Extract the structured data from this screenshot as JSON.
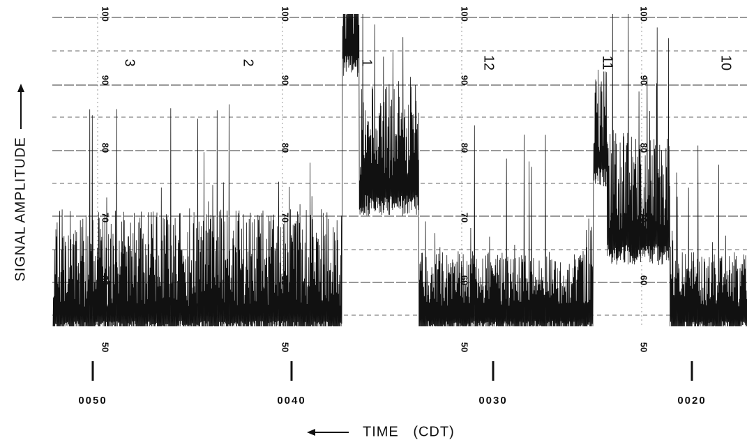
{
  "axis_labels": {
    "y": "SIGNAL AMPLITUDE",
    "x": "TIME (CDT)"
  },
  "time_labels": [
    "0050",
    "0040",
    "0030",
    "0020"
  ],
  "scale_columns": [
    {
      "labels": [
        "100",
        "90",
        "80",
        "70",
        "60",
        "50"
      ]
    },
    {
      "labels": [
        "100",
        "90",
        "80",
        "70",
        "60",
        "50"
      ]
    },
    {
      "labels": [
        "100",
        "90",
        "80",
        "70",
        "60",
        "50"
      ]
    },
    {
      "labels": [
        "100",
        "90",
        "80",
        "70",
        "60",
        "50"
      ]
    }
  ],
  "hour_marks": [
    "3",
    "2",
    "1",
    "12",
    "11",
    "10"
  ]
}
